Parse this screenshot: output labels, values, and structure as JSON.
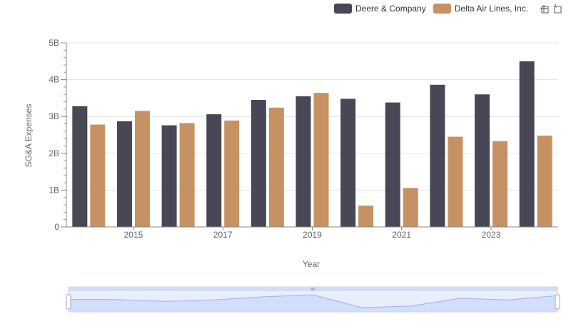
{
  "legend": {
    "items": [
      {
        "label": "Deere & Company",
        "color": "#474756"
      },
      {
        "label": "Delta Air Lines, Inc.",
        "color": "#c69263"
      }
    ],
    "tools": [
      "zoom-in-icon",
      "restore-icon"
    ]
  },
  "chart_data": {
    "type": "bar",
    "xlabel": "Year",
    "ylabel": "SG&A Expenses",
    "x": [
      2014,
      2015,
      2016,
      2017,
      2018,
      2019,
      2020,
      2021,
      2022,
      2023,
      2024
    ],
    "x_tick_labels": [
      "2015",
      "2017",
      "2019",
      "2021",
      "2023"
    ],
    "x_tick_values": [
      2015,
      2017,
      2019,
      2021,
      2023
    ],
    "y_tick_labels": [
      "0",
      "1B",
      "2B",
      "3B",
      "4B",
      "5B"
    ],
    "y_tick_values": [
      0,
      1000000000,
      2000000000,
      3000000000,
      4000000000,
      5000000000
    ],
    "ylim": [
      0,
      5000000000
    ],
    "grid": true,
    "legend_position": "top-right",
    "series": [
      {
        "name": "Deere & Company",
        "color": "#474756",
        "values": [
          3280000000,
          2870000000,
          2760000000,
          3060000000,
          3450000000,
          3550000000,
          3480000000,
          3380000000,
          3860000000,
          3600000000,
          4500000000
        ]
      },
      {
        "name": "Delta Air Lines, Inc.",
        "color": "#c69263",
        "values": [
          2780000000,
          3150000000,
          2820000000,
          2890000000,
          3240000000,
          3640000000,
          580000000,
          1060000000,
          2450000000,
          2330000000,
          2480000000
        ]
      }
    ]
  }
}
